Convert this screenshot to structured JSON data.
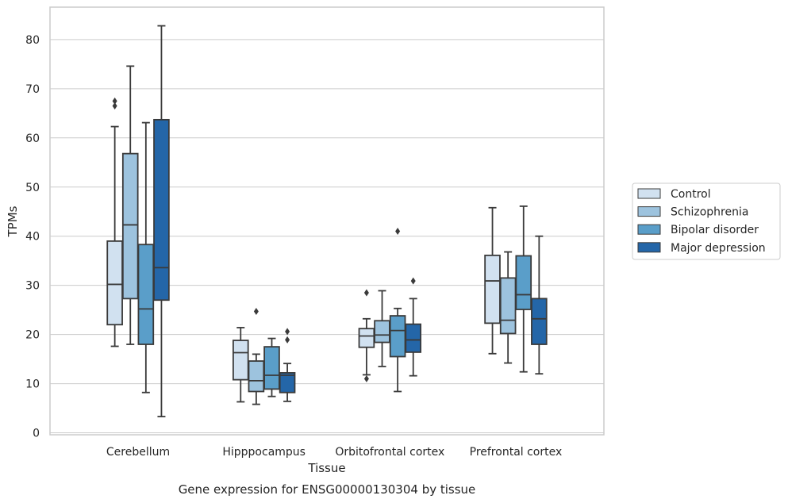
{
  "chart_data": {
    "type": "boxplot",
    "caption": "Gene expression for ENSG00000130304 by tissue",
    "xlabel": "Tissue",
    "ylabel": "TPMs",
    "ylim": [
      -0.4,
      86.6
    ],
    "yticks": [
      0,
      10,
      20,
      30,
      40,
      50,
      60,
      70,
      80
    ],
    "grid": "horizontal",
    "legend_position": "right",
    "categories": [
      "Cerebellum",
      "Hipppocampus",
      "Orbitofrontal cortex",
      "Prefrontal cortex"
    ],
    "series": [
      {
        "name": "Control",
        "color": "#d1e1f0",
        "boxes": [
          {
            "whislo": 17.6,
            "q1": 22.0,
            "med": 30.2,
            "q3": 39.0,
            "whishi": 62.3,
            "fliers": [
              66.5,
              67.5
            ]
          },
          {
            "whislo": 6.3,
            "q1": 10.8,
            "med": 16.3,
            "q3": 18.8,
            "whishi": 21.4,
            "fliers": []
          },
          {
            "whislo": 11.8,
            "q1": 17.4,
            "med": 19.7,
            "q3": 21.2,
            "whishi": 23.2,
            "fliers": [
              11.0,
              28.5
            ]
          },
          {
            "whislo": 16.1,
            "q1": 22.3,
            "med": 30.9,
            "q3": 36.1,
            "whishi": 45.8,
            "fliers": []
          }
        ]
      },
      {
        "name": "Schizophrenia",
        "color": "#9dc3de",
        "boxes": [
          {
            "whislo": 18.0,
            "q1": 27.3,
            "med": 42.3,
            "q3": 56.8,
            "whishi": 74.6,
            "fliers": []
          },
          {
            "whislo": 5.8,
            "q1": 8.4,
            "med": 10.6,
            "q3": 14.6,
            "whishi": 16.0,
            "fliers": [
              24.7
            ]
          },
          {
            "whislo": 13.5,
            "q1": 18.4,
            "med": 19.9,
            "q3": 22.8,
            "whishi": 28.9,
            "fliers": []
          },
          {
            "whislo": 14.2,
            "q1": 20.2,
            "med": 22.9,
            "q3": 31.5,
            "whishi": 36.8,
            "fliers": []
          }
        ]
      },
      {
        "name": "Bipolar disorder",
        "color": "#5a9ec9",
        "boxes": [
          {
            "whislo": 8.2,
            "q1": 18.0,
            "med": 25.2,
            "q3": 38.3,
            "whishi": 63.1,
            "fliers": []
          },
          {
            "whislo": 7.4,
            "q1": 8.9,
            "med": 11.7,
            "q3": 17.5,
            "whishi": 19.2,
            "fliers": []
          },
          {
            "whislo": 8.4,
            "q1": 15.5,
            "med": 20.8,
            "q3": 23.8,
            "whishi": 25.3,
            "fliers": [
              41.0
            ]
          },
          {
            "whislo": 12.4,
            "q1": 25.1,
            "med": 28.1,
            "q3": 36.0,
            "whishi": 46.1,
            "fliers": []
          }
        ]
      },
      {
        "name": "Major depression",
        "color": "#2466a8",
        "boxes": [
          {
            "whislo": 3.3,
            "q1": 27.0,
            "med": 33.6,
            "q3": 63.7,
            "whishi": 82.8,
            "fliers": []
          },
          {
            "whislo": 6.4,
            "q1": 8.2,
            "med": 11.7,
            "q3": 12.2,
            "whishi": 14.1,
            "fliers": [
              18.9,
              20.6
            ]
          },
          {
            "whislo": 11.6,
            "q1": 16.4,
            "med": 18.9,
            "q3": 22.1,
            "whishi": 27.3,
            "fliers": [
              30.9
            ]
          },
          {
            "whislo": 12.0,
            "q1": 18.0,
            "med": 23.2,
            "q3": 27.3,
            "whishi": 40.0,
            "fliers": []
          }
        ]
      }
    ]
  }
}
